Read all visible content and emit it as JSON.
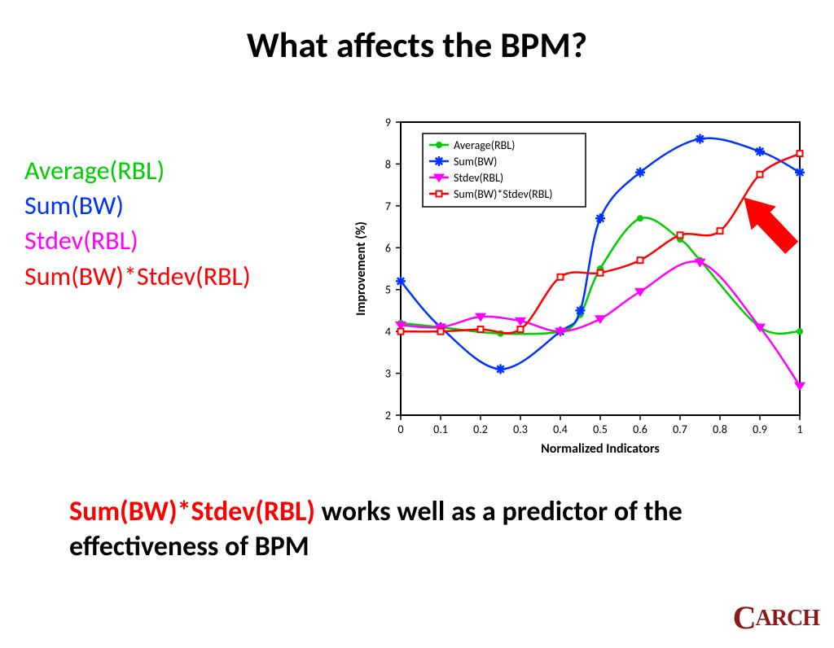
{
  "title": "What affects the BPM?",
  "left_labels": [
    {
      "text": "Average(RBL)",
      "color": "#00cc00"
    },
    {
      "text": "Sum(BW)",
      "color": "#0033ff"
    },
    {
      "text": "Stdev(RBL)",
      "color": "#ff00ff"
    },
    {
      "text": "Sum(BW)*Stdev(RBL)",
      "color": "#ff0000"
    }
  ],
  "conclusion": {
    "highlight": "Sum(BW)*Stdev(RBL)",
    "highlight_color": "#ff0000",
    "rest": " works well as a predictor of the effectiveness of BPM"
  },
  "logo_text": "CARCH",
  "chart": {
    "type": "line",
    "xlabel": "Normalized Indicators",
    "ylabel": "Improvement (%)",
    "xlim": [
      0,
      1
    ],
    "ylim": [
      2,
      9
    ],
    "xticks": [
      0,
      0.1,
      0.2,
      0.3,
      0.4,
      0.5,
      0.6,
      0.7,
      0.8,
      0.9,
      1
    ],
    "yticks": [
      2,
      3,
      4,
      5,
      6,
      7,
      8,
      9
    ],
    "label_fontsize": 16,
    "tick_fontsize": 14,
    "axis_color": "#000000",
    "grid": false,
    "background_color": "#ffffff",
    "legend": {
      "position": "upper-left-inset",
      "fontsize": 14,
      "border_color": "#000000"
    },
    "series": [
      {
        "name": "Average(RBL)",
        "color": "#00cc00",
        "marker": "circle",
        "marker_size": 7,
        "line_width": 2.5,
        "x": [
          0,
          0.1,
          0.25,
          0.4,
          0.45,
          0.5,
          0.6,
          0.7,
          0.75,
          0.9,
          1.0
        ],
        "y": [
          4.2,
          4.1,
          3.95,
          4.0,
          4.4,
          5.5,
          6.7,
          6.2,
          5.7,
          4.1,
          4.0
        ]
      },
      {
        "name": "Sum(BW)",
        "color": "#0033ff",
        "marker": "star",
        "marker_size": 9,
        "line_width": 2.5,
        "x": [
          0,
          0.1,
          0.25,
          0.4,
          0.45,
          0.5,
          0.6,
          0.75,
          0.9,
          1.0
        ],
        "y": [
          5.2,
          4.1,
          3.1,
          4.0,
          4.5,
          6.7,
          7.8,
          8.6,
          8.3,
          7.8
        ]
      },
      {
        "name": "Stdev(RBL)",
        "color": "#ff00ff",
        "marker": "triangle-down",
        "marker_size": 8,
        "line_width": 2.5,
        "x": [
          0,
          0.1,
          0.2,
          0.3,
          0.4,
          0.5,
          0.6,
          0.75,
          0.9,
          1.0
        ],
        "y": [
          4.15,
          4.1,
          4.35,
          4.25,
          4.0,
          4.3,
          4.95,
          5.65,
          4.1,
          2.7
        ]
      },
      {
        "name": "Sum(BW)*Stdev(RBL)",
        "color": "#ff0000",
        "marker": "square",
        "marker_size": 7,
        "line_width": 2.5,
        "x": [
          0,
          0.1,
          0.2,
          0.3,
          0.4,
          0.5,
          0.6,
          0.7,
          0.8,
          0.9,
          1.0
        ],
        "y": [
          4.0,
          4.0,
          4.05,
          4.05,
          5.3,
          5.4,
          5.7,
          6.3,
          6.4,
          7.75,
          8.25
        ]
      }
    ],
    "arrow": {
      "color": "#ff0000",
      "from": [
        0.98,
        6.0
      ],
      "to": [
        0.86,
        7.2
      ],
      "width": 22
    }
  }
}
